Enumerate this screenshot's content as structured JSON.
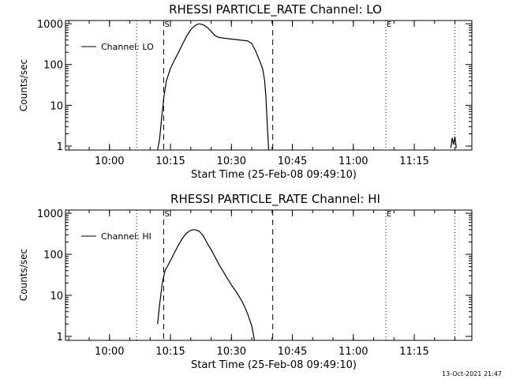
{
  "footer": {
    "timestamp": "13-Oct-2021 21:47"
  },
  "chart_data": [
    {
      "type": "line",
      "title": "RHESSI PARTICLE_RATE Channel: LO",
      "xlabel": "Start Time (25-Feb-08 09:49:10)",
      "ylabel": "Counts/sec",
      "yscale": "log",
      "ylim": [
        0.8,
        1200
      ],
      "xlim": [
        "09:49:10",
        "11:29:10"
      ],
      "xticks": [
        "10:00",
        "10:15",
        "10:30",
        "10:45",
        "11:00",
        "11:15"
      ],
      "yticks": [
        "1",
        "10",
        "100",
        "1000"
      ],
      "legend": {
        "position": "top-left"
      },
      "markers": [
        {
          "time": "10:06:40",
          "style": "dotted",
          "label": ""
        },
        {
          "time": "10:13:20",
          "style": "dashed",
          "label": "S"
        },
        {
          "time": "10:40:10",
          "style": "dashed",
          "label": ""
        },
        {
          "time": "11:08:00",
          "style": "dotted",
          "label": "E"
        },
        {
          "time": "11:25:00",
          "style": "dotted",
          "label": ""
        }
      ],
      "series": [
        {
          "name": "Channel: LO",
          "segments": [
            [
              [
                "10:11:50",
                0.8
              ],
              [
                "10:12:20",
                1.5
              ],
              [
                "10:12:50",
                5
              ],
              [
                "10:13:20",
                15
              ],
              [
                "10:14:00",
                40
              ],
              [
                "10:15:00",
                80
              ],
              [
                "10:16:00",
                130
              ],
              [
                "10:17:00",
                200
              ],
              [
                "10:18:00",
                320
              ],
              [
                "10:19:00",
                500
              ],
              [
                "10:20:00",
                720
              ],
              [
                "10:21:00",
                900
              ],
              [
                "10:22:00",
                1000
              ],
              [
                "10:23:00",
                950
              ],
              [
                "10:24:00",
                820
              ],
              [
                "10:25:00",
                650
              ],
              [
                "10:26:00",
                510
              ],
              [
                "10:27:00",
                460
              ],
              [
                "10:28:00",
                445
              ],
              [
                "10:30:00",
                420
              ],
              [
                "10:32:00",
                400
              ],
              [
                "10:34:00",
                380
              ],
              [
                "10:35:00",
                330
              ],
              [
                "10:36:00",
                210
              ],
              [
                "10:37:00",
                120
              ],
              [
                "10:37:40",
                80
              ],
              [
                "10:38:10",
                40
              ],
              [
                "10:38:30",
                15
              ],
              [
                "10:38:50",
                3
              ],
              [
                "10:39:10",
                0.8
              ]
            ],
            [
              [
                "11:24:00",
                0.9
              ],
              [
                "11:24:20",
                1.6
              ],
              [
                "11:24:40",
                1.1
              ],
              [
                "11:25:00",
                1.7
              ],
              [
                "11:25:20",
                0.9
              ]
            ]
          ]
        }
      ]
    },
    {
      "type": "line",
      "title": "RHESSI PARTICLE_RATE Channel: HI",
      "xlabel": "Start Time (25-Feb-08 09:49:10)",
      "ylabel": "Counts/sec",
      "yscale": "log",
      "ylim": [
        0.8,
        1200
      ],
      "xlim": [
        "09:49:10",
        "11:29:10"
      ],
      "xticks": [
        "10:00",
        "10:15",
        "10:30",
        "10:45",
        "11:00",
        "11:15"
      ],
      "yticks": [
        "1",
        "10",
        "100",
        "1000"
      ],
      "legend": {
        "position": "top-left"
      },
      "markers": [
        {
          "time": "10:06:40",
          "style": "dotted",
          "label": ""
        },
        {
          "time": "10:13:20",
          "style": "dashed",
          "label": "S"
        },
        {
          "time": "10:40:10",
          "style": "dashed",
          "label": ""
        },
        {
          "time": "11:08:00",
          "style": "dotted",
          "label": "E"
        },
        {
          "time": "11:25:00",
          "style": "dotted",
          "label": ""
        }
      ],
      "series": [
        {
          "name": "Channel: HI",
          "segments": [
            [
              [
                "10:11:50",
                2
              ],
              [
                "10:12:20",
                6
              ],
              [
                "10:13:00",
                20
              ],
              [
                "10:13:40",
                40
              ],
              [
                "10:15:00",
                70
              ],
              [
                "10:16:00",
                110
              ],
              [
                "10:17:00",
                170
              ],
              [
                "10:18:00",
                250
              ],
              [
                "10:19:00",
                330
              ],
              [
                "10:20:00",
                390
              ],
              [
                "10:21:00",
                400
              ],
              [
                "10:22:00",
                370
              ],
              [
                "10:23:00",
                290
              ],
              [
                "10:24:00",
                190
              ],
              [
                "10:25:00",
                130
              ],
              [
                "10:26:00",
                85
              ],
              [
                "10:27:00",
                55
              ],
              [
                "10:28:00",
                38
              ],
              [
                "10:29:00",
                26
              ],
              [
                "10:30:00",
                18
              ],
              [
                "10:31:00",
                13
              ],
              [
                "10:32:00",
                9
              ],
              [
                "10:32:40",
                7
              ],
              [
                "10:33:20",
                5
              ],
              [
                "10:34:00",
                3.5
              ],
              [
                "10:34:30",
                2.5
              ],
              [
                "10:35:00",
                1.8
              ],
              [
                "10:35:20",
                1.2
              ],
              [
                "10:35:40",
                0.8
              ]
            ]
          ]
        }
      ]
    }
  ]
}
